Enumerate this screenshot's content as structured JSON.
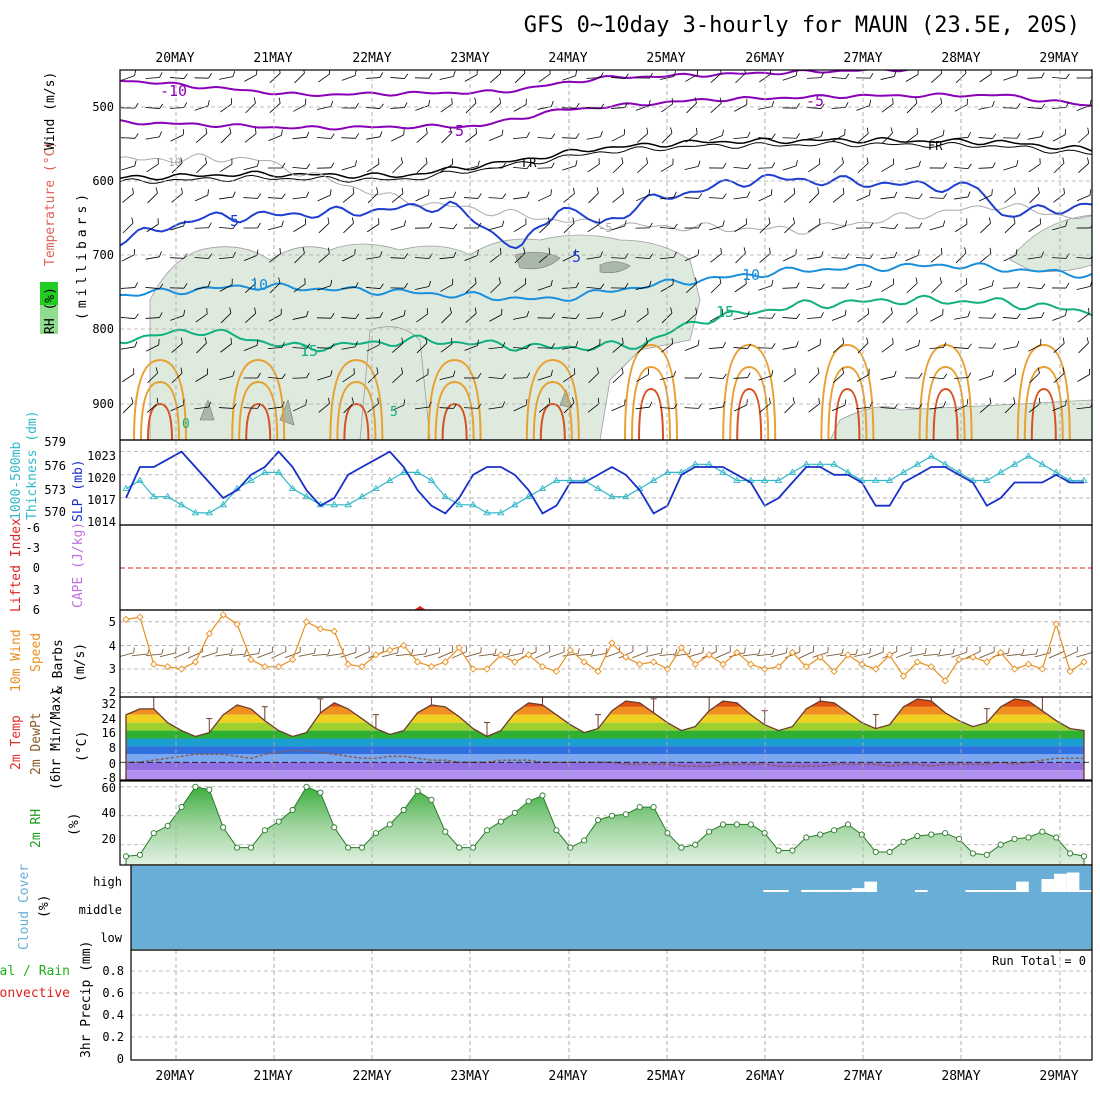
{
  "title": "GFS 0~10day 3-hourly for MAUN (23.5E, 20S)",
  "dates": [
    "20MAY",
    "21MAY",
    "22MAY",
    "23MAY",
    "24MAY",
    "25MAY",
    "26MAY",
    "27MAY",
    "28MAY",
    "29MAY"
  ],
  "colors": {
    "background": "#ffffff",
    "grid": "#aaaaaa",
    "purple_isotherm": "#8a00b8",
    "blue_isotherm": "#1f3fd0",
    "lightblue_isotherm": "#1a8fdc",
    "green_isotherm": "#10b080",
    "orange_isotherm": "#e8a030",
    "rh_fill": "#dde9dd",
    "slp": "#1830c8",
    "thickness": "#30b8c8",
    "lifted_index": "#e02020",
    "wind_speed": "#e89020",
    "cloud_cover": "#68aed6",
    "rh_area": "#3fae3f",
    "precip_total": "#20b020",
    "precip_convective": "#e02020"
  },
  "panels": {
    "upper_air": {
      "labels": [
        "RH (%)",
        "Temperature (°C)",
        "Wind (m/s)",
        "(millibars)"
      ],
      "y_ticks": [
        "500",
        "600",
        "700",
        "800",
        "900"
      ],
      "contour_labels": [
        "-10",
        "-5",
        "-5",
        "FR",
        "FR",
        "10",
        "-5",
        "5",
        "5",
        "10",
        "10",
        "15",
        "15",
        "0",
        "5"
      ]
    },
    "slp_thickness": {
      "labels": [
        "1000-500mb",
        "Thickness (dm)",
        "SLP (mb)"
      ],
      "left_ticks": [
        "579",
        "576",
        "573",
        "570"
      ],
      "right_ticks": [
        "1023",
        "1020",
        "1017",
        "1014"
      ]
    },
    "li_cape": {
      "labels": [
        "Lifted Index",
        "CAPE (J/kg)"
      ],
      "ticks": [
        "-6",
        "-3",
        "0",
        "3",
        "6"
      ]
    },
    "wind10m": {
      "labels": [
        "10m Wind",
        "Speed",
        "& Barbs",
        "(m/s)"
      ],
      "ticks": [
        "5",
        "4",
        "3",
        "2"
      ]
    },
    "temp2m": {
      "labels": [
        "2m Temp",
        "2m DewPt",
        "(6hr Min/Max)",
        "(°C)"
      ],
      "ticks": [
        "32",
        "24",
        "16",
        "8",
        "0",
        "-8"
      ]
    },
    "rh2m": {
      "labels": [
        "2m RH",
        "(%)"
      ],
      "ticks": [
        "60",
        "40",
        "20"
      ]
    },
    "cloud": {
      "labels": [
        "Cloud Cover",
        "(%)"
      ],
      "levels": [
        "high",
        "middle",
        "low"
      ]
    },
    "precip": {
      "labels": [
        "Total / Rain",
        "Convective",
        "3hr Precip (mm)"
      ],
      "ticks": [
        "0.8",
        "0.6",
        "0.4",
        "0.2",
        "0"
      ],
      "run_total": "Run Total = 0"
    }
  },
  "chart_data": [
    {
      "type": "line",
      "panel": "slp_thickness",
      "series": [
        {
          "name": "SLP (mb)",
          "values": [
            1017,
            1021,
            1021,
            1022,
            1023,
            1021,
            1019,
            1017,
            1018,
            1020,
            1021,
            1023,
            1021,
            1018,
            1016,
            1017,
            1020,
            1021,
            1022,
            1023,
            1021,
            1018,
            1016,
            1015,
            1017,
            1020,
            1021,
            1021,
            1020,
            1018,
            1015,
            1016,
            1019,
            1019,
            1020,
            1021,
            1020,
            1018,
            1015,
            1016,
            1020,
            1021,
            1021,
            1021,
            1020,
            1019,
            1016,
            1017,
            1019,
            1021,
            1021,
            1020,
            1020,
            1019,
            1016,
            1016,
            1019,
            1020,
            1021,
            1021,
            1020,
            1019,
            1016,
            1017,
            1019,
            1019,
            1019,
            1020,
            1019,
            1019
          ]
        },
        {
          "name": "1000-500mb Thickness (dm)",
          "values": [
            573,
            574,
            572,
            572,
            571,
            570,
            570,
            571,
            573,
            574,
            575,
            575,
            573,
            572,
            571,
            571,
            571,
            572,
            573,
            574,
            575,
            575,
            574,
            572,
            571,
            571,
            570,
            570,
            571,
            572,
            573,
            574,
            574,
            574,
            573,
            572,
            572,
            573,
            574,
            575,
            575,
            576,
            576,
            575,
            574,
            574,
            574,
            574,
            575,
            576,
            576,
            576,
            575,
            574,
            574,
            574,
            575,
            576,
            577,
            576,
            575,
            574,
            574,
            575,
            576,
            577,
            576,
            575,
            574,
            574
          ]
        }
      ]
    },
    {
      "type": "line",
      "panel": "wind10m",
      "series": [
        {
          "name": "10m Wind Speed (m/s)",
          "values": [
            5.1,
            5.2,
            3.2,
            3.1,
            3.0,
            3.3,
            4.5,
            5.3,
            4.9,
            3.4,
            3.1,
            3.1,
            3.4,
            5.0,
            4.7,
            4.6,
            3.2,
            3.1,
            3.6,
            3.8,
            4.0,
            3.3,
            3.1,
            3.3,
            3.9,
            3.0,
            3.0,
            3.6,
            3.3,
            3.6,
            3.1,
            2.9,
            3.8,
            3.3,
            2.9,
            4.1,
            3.5,
            3.2,
            3.3,
            3.0,
            3.9,
            3.2,
            3.6,
            3.2,
            3.7,
            3.2,
            3.0,
            3.1,
            3.7,
            3.1,
            3.5,
            2.9,
            3.6,
            3.2,
            3.0,
            3.6,
            2.7,
            3.3,
            3.1,
            2.5,
            3.4,
            3.5,
            3.3,
            3.7,
            3.0,
            3.2,
            3.0,
            4.9,
            2.9,
            3.3
          ]
        }
      ]
    },
    {
      "type": "area",
      "panel": "temp2m",
      "series": [
        {
          "name": "2m Temp (°C)",
          "values": [
            24,
            27,
            27,
            20,
            16,
            13,
            15,
            24,
            29,
            27,
            21,
            16,
            13,
            15,
            25,
            30,
            27,
            22,
            17,
            14,
            16,
            25,
            29,
            28,
            23,
            17,
            13,
            16,
            25,
            30,
            29,
            24,
            19,
            15,
            17,
            26,
            31,
            30,
            25,
            20,
            16,
            18,
            26,
            31,
            30,
            24,
            19,
            16,
            18,
            27,
            31,
            30,
            25,
            20,
            17,
            19,
            28,
            32,
            31,
            25,
            21,
            18,
            20,
            28,
            32,
            31,
            26,
            21,
            17,
            16
          ]
        },
        {
          "name": "2m DewPt (°C)",
          "values": [
            0,
            0,
            1,
            2,
            3,
            4,
            4,
            4,
            3,
            2,
            4,
            5,
            6,
            6,
            5,
            4,
            3,
            2,
            2,
            3,
            3,
            2,
            1,
            1,
            0,
            0,
            0,
            1,
            1,
            1,
            0,
            0,
            0,
            0,
            0,
            0,
            -1,
            -1,
            -1,
            -1,
            -2,
            -2,
            -2,
            -1,
            -1,
            -1,
            -1,
            -2,
            -2,
            -2,
            -2,
            -1,
            -1,
            -1,
            -1,
            -2,
            -1,
            -1,
            -2,
            -1,
            -1,
            -1,
            -1,
            0,
            -1,
            0,
            1,
            2,
            2,
            2
          ]
        }
      ]
    },
    {
      "type": "area",
      "panel": "rh2m",
      "series": [
        {
          "name": "2m RH (%)",
          "values": [
            12,
            13,
            28,
            33,
            46,
            60,
            58,
            32,
            18,
            18,
            30,
            36,
            44,
            60,
            56,
            32,
            18,
            18,
            28,
            34,
            44,
            57,
            51,
            29,
            18,
            18,
            30,
            36,
            42,
            50,
            54,
            30,
            18,
            23,
            37,
            40,
            41,
            46,
            46,
            28,
            18,
            20,
            29,
            34,
            34,
            34,
            28,
            16,
            16,
            25,
            27,
            30,
            34,
            27,
            15,
            15,
            22,
            26,
            27,
            28,
            24,
            14,
            13,
            20,
            24,
            25,
            29,
            25,
            14,
            12
          ]
        }
      ]
    },
    {
      "type": "bar",
      "panel": "cloud",
      "series": [
        {
          "name": "high cloud (%)",
          "values": [
            0,
            0,
            0,
            0,
            0,
            0,
            0,
            0,
            0,
            0,
            0,
            0,
            0,
            0,
            0,
            0,
            0,
            0,
            0,
            0,
            0,
            0,
            0,
            0,
            0,
            0,
            0,
            0,
            0,
            0,
            0,
            0,
            0,
            0,
            0,
            0,
            0,
            0,
            0,
            0,
            0,
            0,
            0,
            0,
            0,
            0,
            0,
            0,
            0,
            0,
            5,
            5,
            0,
            8,
            8,
            8,
            8,
            15,
            40,
            0,
            0,
            0,
            5,
            0,
            0,
            0,
            5,
            5,
            5,
            5,
            40,
            0,
            50,
            70,
            75,
            5
          ]
        }
      ]
    },
    {
      "type": "bar",
      "panel": "precip",
      "series": [
        {
          "name": "3hr Precip (mm)",
          "values": [
            0,
            0,
            0,
            0,
            0,
            0,
            0,
            0,
            0,
            0
          ]
        }
      ]
    }
  ]
}
